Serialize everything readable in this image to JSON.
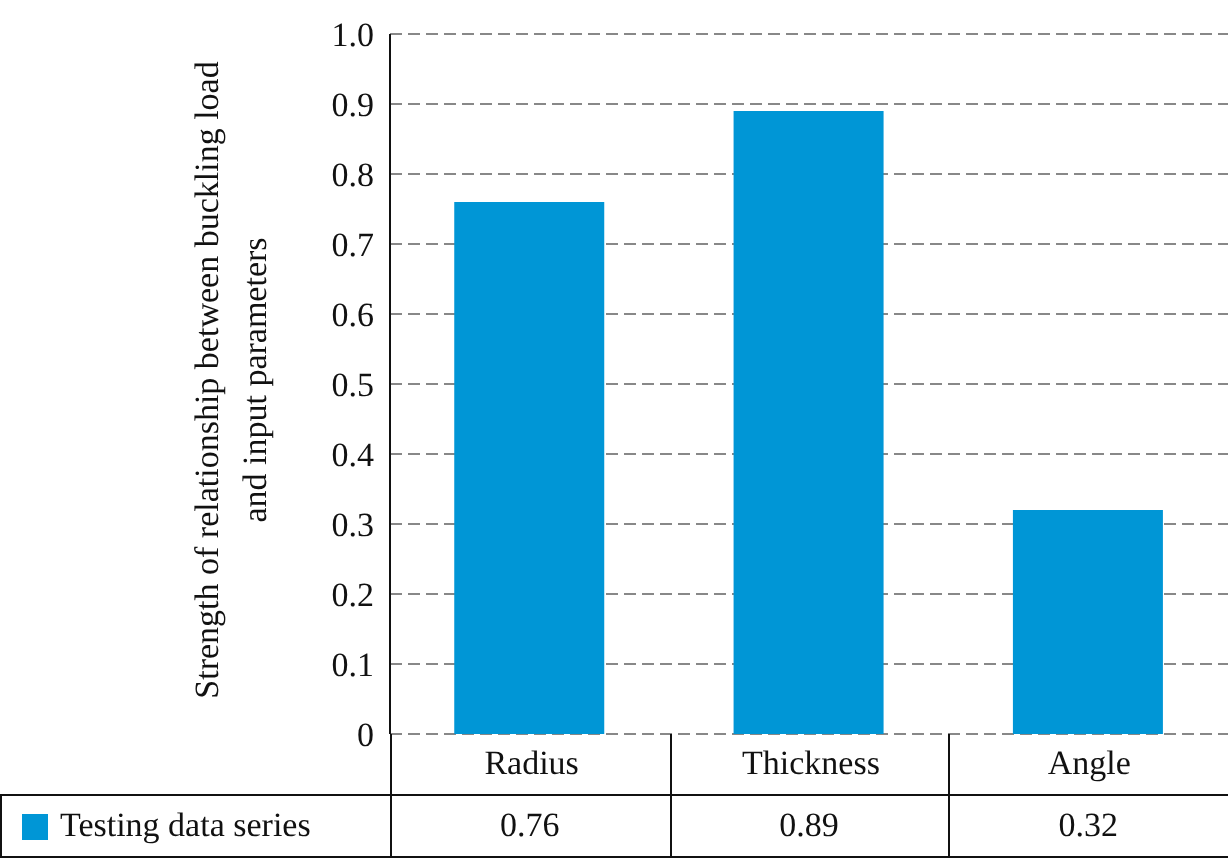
{
  "chart_data": {
    "type": "bar",
    "ylabel": "Strength of relationship between buckling load and input parameters",
    "categories": [
      "Radius",
      "Thickness",
      "Angle"
    ],
    "series": [
      {
        "name": "Testing data series",
        "color": "#0096d6",
        "values": [
          0.76,
          0.89,
          0.32
        ]
      }
    ],
    "ylim": [
      0,
      1
    ],
    "yticks": [
      {
        "value": 0,
        "label": "0"
      },
      0.1,
      0.2,
      0.3,
      0.4,
      0.5,
      0.6,
      0.7,
      0.8,
      0.9,
      {
        "value": 1,
        "label": "1.0"
      }
    ],
    "grid": "y",
    "legend": "bottom",
    "data_labels": true
  }
}
